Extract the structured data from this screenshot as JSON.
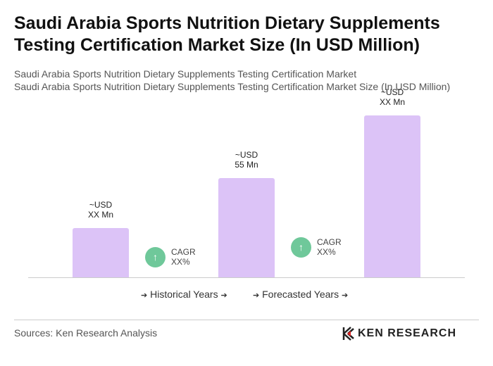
{
  "chart_data": {
    "type": "bar",
    "title": "Saudi Arabia Sports Nutrition Dietary Supplements Testing Certification Market Size (In USD Million)",
    "subtitle": [
      "Saudi Arabia Sports Nutrition Dietary Supplements Testing Certification Market",
      "Saudi Arabia Sports Nutrition Dietary Supplements Testing Certification Market Size (In USD Million)"
    ],
    "values": [
      27.5,
      55,
      90
    ],
    "value_labels": [
      "~USD\nXX Mn",
      "~USD\n55 Mn",
      "~USD\nXX Mn"
    ],
    "color": "#dcc3f7",
    "annotations": [
      "CAGR\nXX%",
      "CAGR\nXX%"
    ],
    "annotation_color": "#6fc89a",
    "legend": [
      "Historical Years",
      "Forecasted Years"
    ],
    "source": "Sources: Ken Research Analysis",
    "logo": "KEN RESEARCH"
  }
}
